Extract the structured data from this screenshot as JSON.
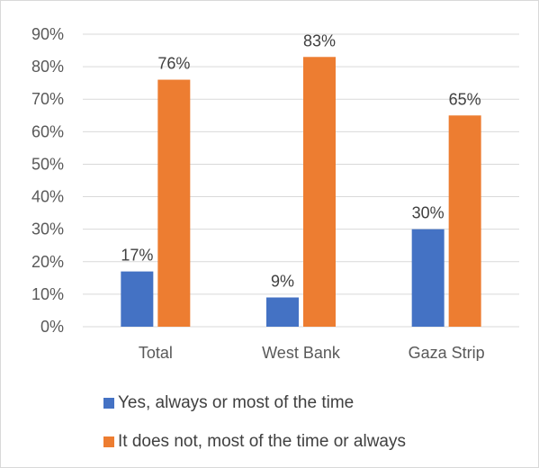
{
  "chart_data": {
    "type": "bar",
    "categories": [
      "Total",
      "West Bank",
      "Gaza Strip"
    ],
    "series": [
      {
        "name": "Yes, always or most of the time",
        "values": [
          17,
          9,
          30
        ],
        "labels": [
          "17%",
          "9%",
          "30%"
        ],
        "color": "#4472c4"
      },
      {
        "name": "It does not, most of the time or always",
        "values": [
          76,
          83,
          65
        ],
        "labels": [
          "76%",
          "83%",
          "65%"
        ],
        "color": "#ed7d31"
      }
    ],
    "yticks": [
      "0%",
      "10%",
      "20%",
      "30%",
      "40%",
      "50%",
      "60%",
      "70%",
      "80%",
      "90%"
    ],
    "ylim": [
      0,
      90
    ],
    "grid": true,
    "legend_position": "bottom"
  }
}
